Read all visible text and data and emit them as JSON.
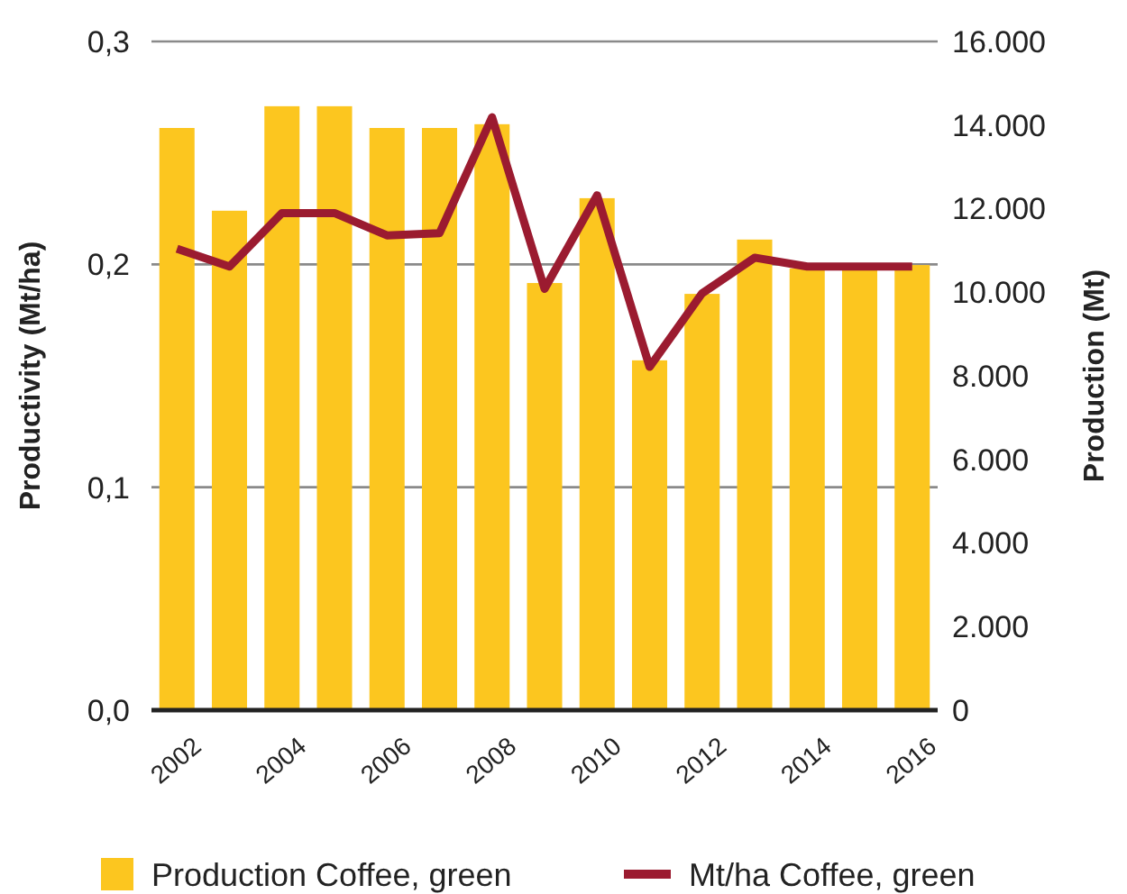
{
  "chart_data": {
    "type": "bar",
    "categories": [
      "2002",
      null,
      "2004",
      null,
      "2006",
      null,
      "2008",
      null,
      "2010",
      null,
      "2012",
      null,
      "2014",
      null,
      "2016"
    ],
    "series": [
      {
        "name": "Production Coffee, green",
        "axis": "y2",
        "color": "#fcc61f",
        "values": [
          13930,
          11950,
          14450,
          14450,
          13930,
          13930,
          14020,
          10220,
          12250,
          8370,
          9960,
          11260,
          10570,
          10650,
          10650
        ]
      },
      {
        "name": "Mt/ha Coffee, green",
        "type": "line",
        "color": "#9b1b30",
        "values": [
          0.207,
          0.199,
          0.223,
          0.223,
          0.213,
          0.214,
          0.266,
          0.189,
          0.231,
          0.154,
          0.187,
          0.203,
          0.199,
          0.199,
          0.199
        ]
      }
    ],
    "ylabel": "Productivity (Mt/ha)",
    "y2label": "Production (Mt)",
    "ylim": [
      0,
      0.3
    ],
    "yticks": [
      {
        "value": 0,
        "label": "0,0"
      },
      {
        "value": 0.1,
        "label": "0,1"
      },
      {
        "value": 0.2,
        "label": "0,2"
      },
      {
        "value": 0.3,
        "label": "0,3"
      }
    ],
    "y2lim": [
      0,
      16000
    ],
    "y2ticks": [
      {
        "value": 0,
        "label": "0"
      },
      {
        "value": 2000,
        "label": "2.000"
      },
      {
        "value": 4000,
        "label": "4.000"
      },
      {
        "value": 6000,
        "label": "6.000"
      },
      {
        "value": 8000,
        "label": "8.000"
      },
      {
        "value": 10000,
        "label": "10.000"
      },
      {
        "value": 12000,
        "label": "12.000"
      },
      {
        "value": 14000,
        "label": "14.000"
      },
      {
        "value": 16000,
        "label": "16.000"
      }
    ],
    "grid": "y",
    "legend": "bottom",
    "marker": "none",
    "line_style": "solid"
  }
}
